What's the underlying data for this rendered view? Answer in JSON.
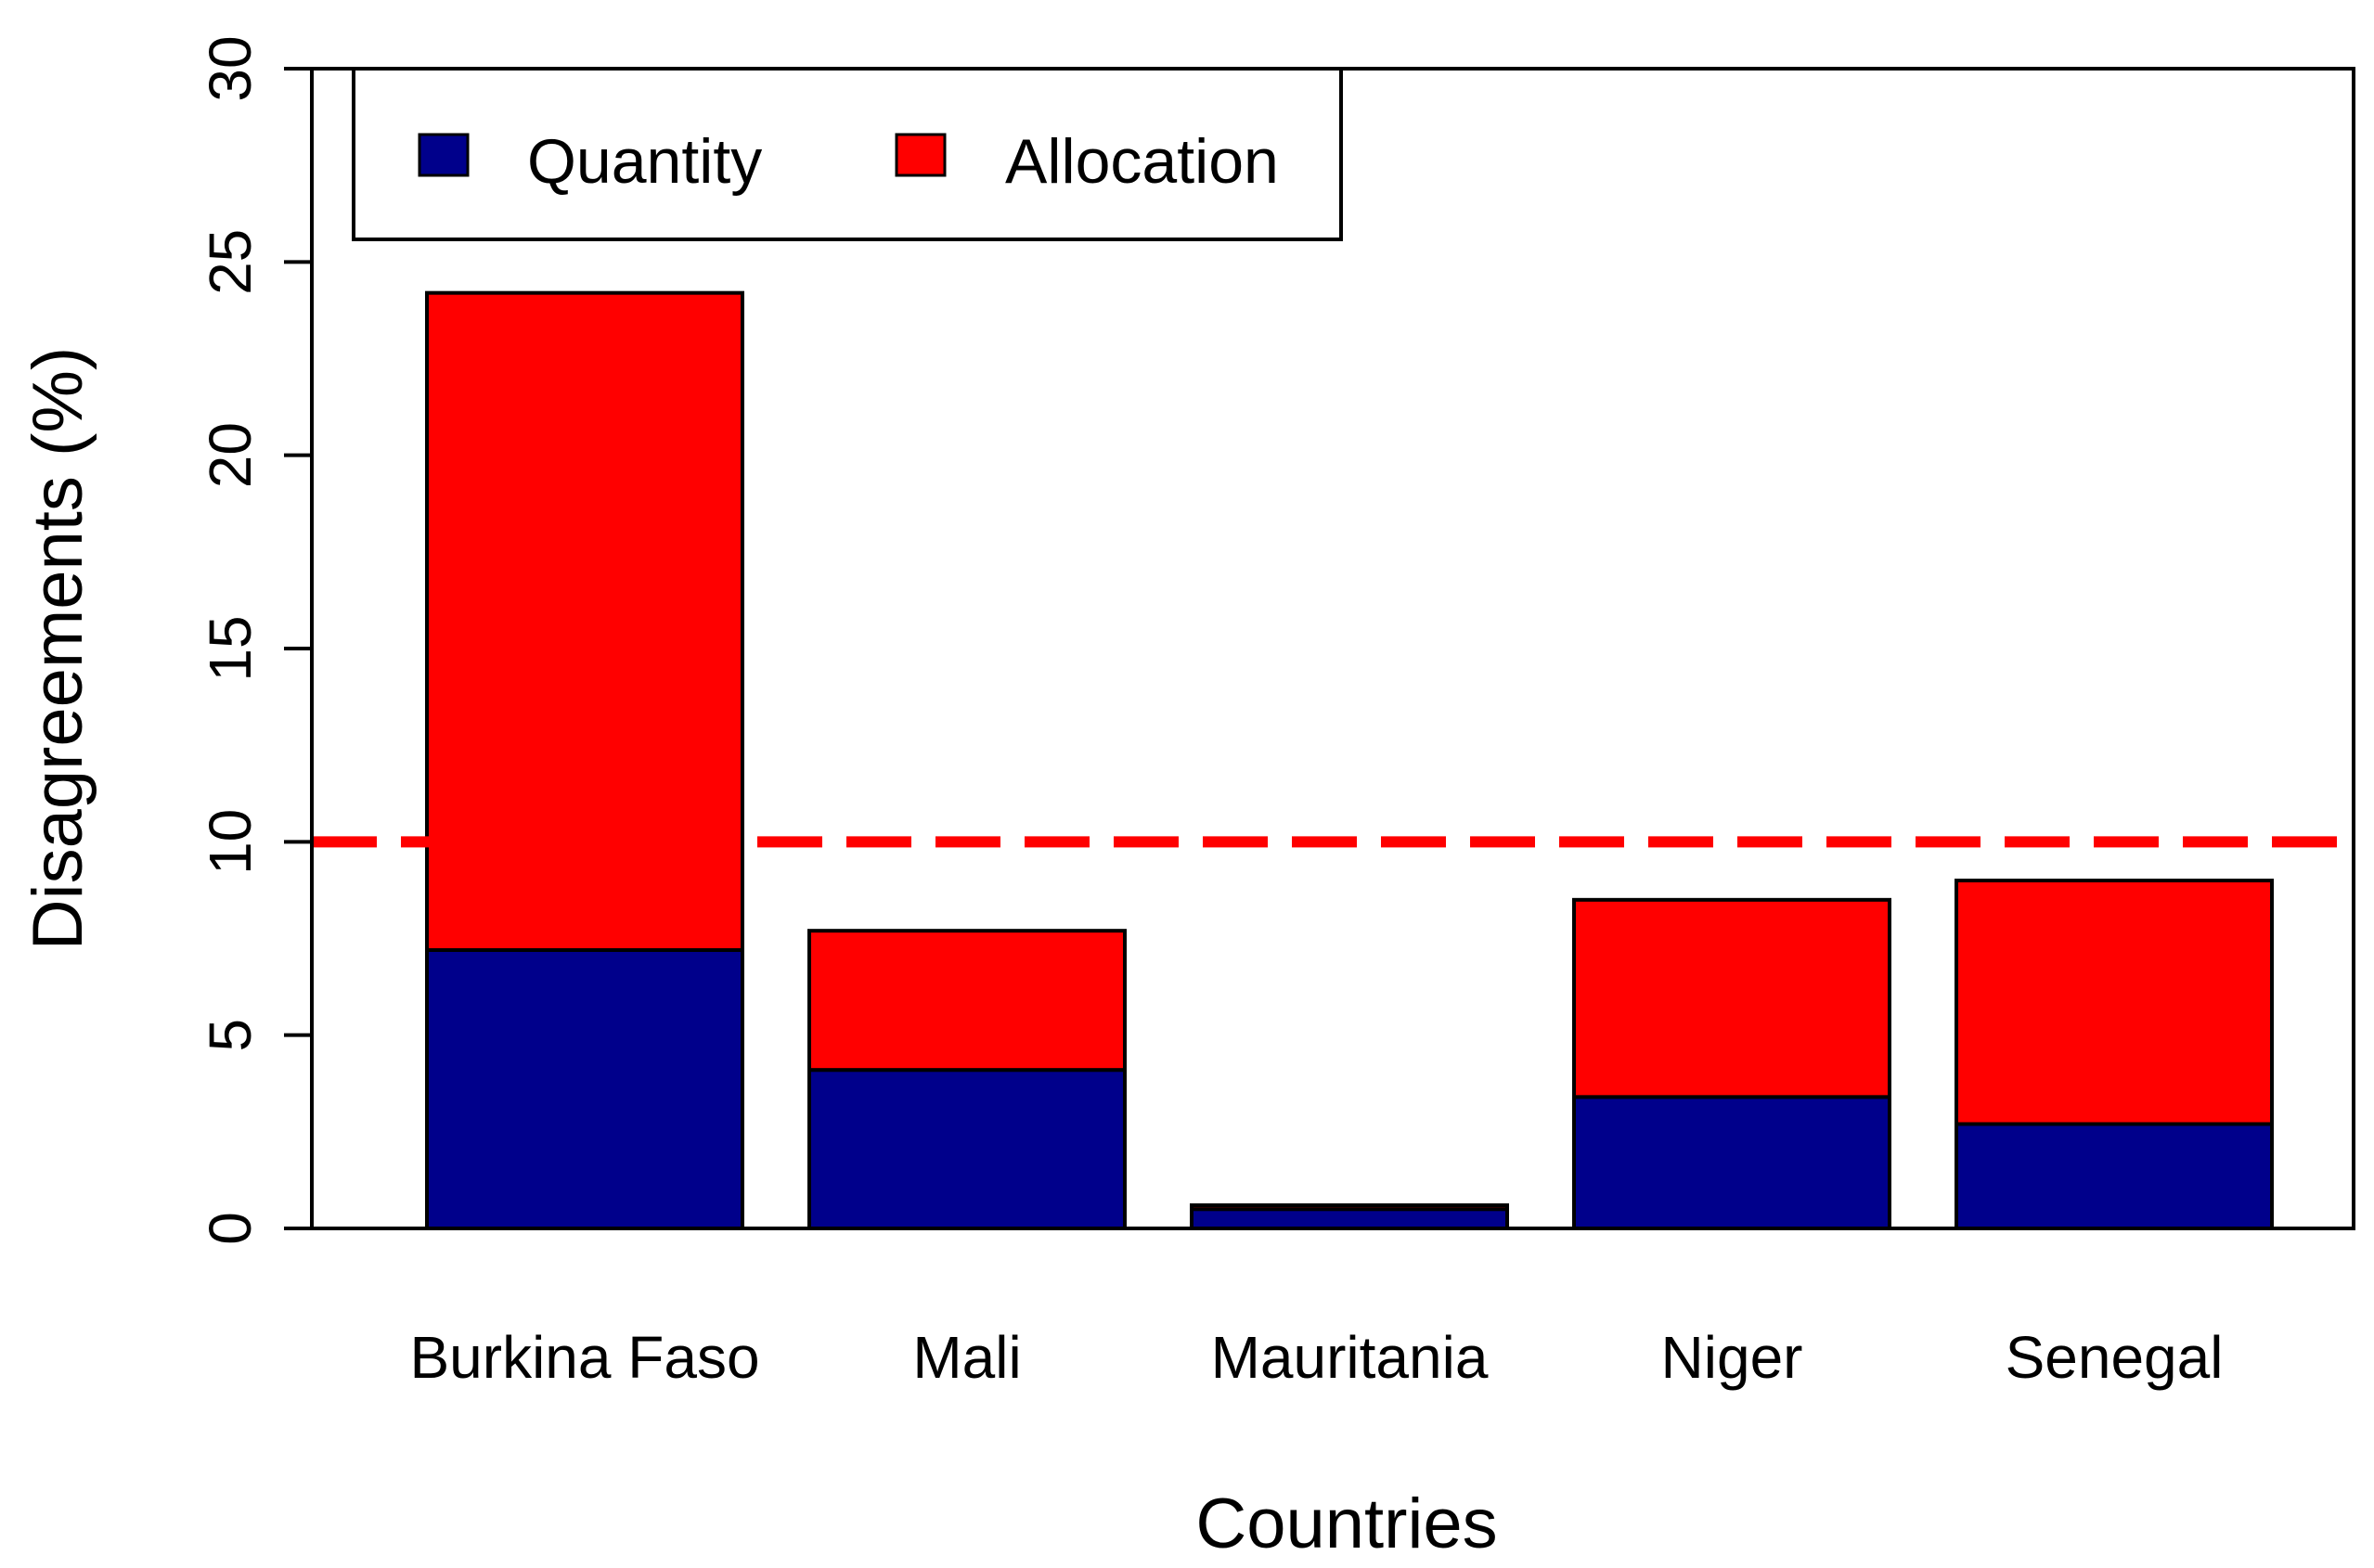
{
  "chart_data": {
    "type": "bar",
    "stacked": true,
    "categories": [
      "Burkina Faso",
      "Mali",
      "Mauritania",
      "Niger",
      "Senegal"
    ],
    "series": [
      {
        "name": "Quantity",
        "color": "#00008B",
        "values": [
          7.2,
          4.1,
          0.5,
          3.4,
          2.7
        ]
      },
      {
        "name": "Allocation",
        "color": "#FF0000",
        "values": [
          17.0,
          3.6,
          0.1,
          5.1,
          6.3
        ]
      }
    ],
    "xlabel": "Countries",
    "ylabel": "Disagreements (%)",
    "ylim": [
      0,
      30
    ],
    "yticks": [
      "0",
      "5",
      "10",
      "15",
      "20",
      "25",
      "30"
    ],
    "reference_line": {
      "y": 10,
      "color": "#FF0000",
      "style": "dashed"
    },
    "legend": {
      "position": "top-left",
      "orientation": "horizontal"
    },
    "grid": false
  }
}
